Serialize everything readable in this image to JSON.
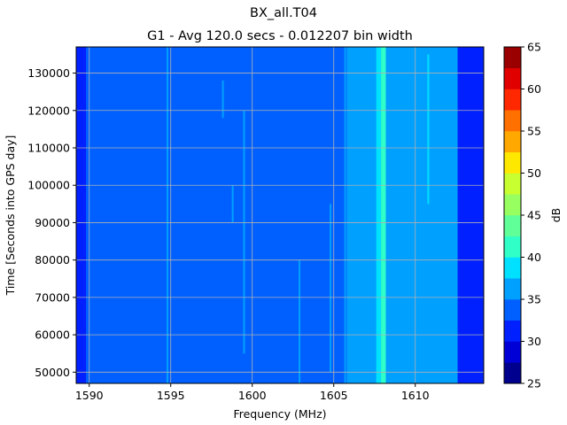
{
  "chart_data": {
    "type": "heatmap",
    "suptitle": "BX_all.T04",
    "title": "G1 - Avg 120.0 secs - 0.012207 bin width",
    "xlabel": "Frequency (MHz)",
    "ylabel": "Time [Seconds into GPS day]",
    "xlim": [
      1589.2,
      1614.2
    ],
    "ylim": [
      47000,
      137000
    ],
    "x_ticks": [
      1590,
      1595,
      1600,
      1605,
      1610
    ],
    "y_ticks": [
      50000,
      60000,
      70000,
      80000,
      90000,
      100000,
      110000,
      120000,
      130000
    ],
    "grid": true,
    "colorbar": {
      "label": "dB",
      "min": 25,
      "max": 65,
      "step": 2.5,
      "ticks": [
        25,
        30,
        35,
        40,
        45,
        50,
        55,
        60,
        65
      ],
      "colors": [
        "#00008f",
        "#0000d6",
        "#0020ff",
        "#0060ff",
        "#00a0ff",
        "#00e0ff",
        "#30ffc8",
        "#60ff98",
        "#98ff60",
        "#c8ff30",
        "#ffe800",
        "#ffa800",
        "#ff7000",
        "#ff2800",
        "#e00000",
        "#9a0000"
      ]
    },
    "background_level_db": 33,
    "spectral_bands": [
      {
        "from": 1589.2,
        "to": 1589.8,
        "level_db": 31
      },
      {
        "from": 1603.0,
        "to": 1604.8,
        "level_db": 34
      },
      {
        "from": 1604.8,
        "to": 1605.8,
        "level_db": 33
      },
      {
        "from": 1605.8,
        "to": 1607.6,
        "level_db": 35
      },
      {
        "from": 1607.6,
        "to": 1607.9,
        "level_db": 38
      },
      {
        "from": 1607.9,
        "to": 1608.2,
        "level_db": 41
      },
      {
        "from": 1608.2,
        "to": 1612.6,
        "level_db": 36
      },
      {
        "from": 1612.6,
        "to": 1614.2,
        "level_db": 31
      }
    ],
    "spurs": [
      {
        "freq": 1594.8,
        "level_db": 36,
        "t_from": 47000,
        "t_to": 137000
      },
      {
        "freq": 1598.2,
        "level_db": 36,
        "t_from": 118000,
        "t_to": 128000
      },
      {
        "freq": 1598.8,
        "level_db": 36,
        "t_from": 90000,
        "t_to": 100000
      },
      {
        "freq": 1599.5,
        "level_db": 35,
        "t_from": 55000,
        "t_to": 120000
      },
      {
        "freq": 1602.9,
        "level_db": 36,
        "t_from": 47000,
        "t_to": 80000
      },
      {
        "freq": 1604.8,
        "level_db": 36,
        "t_from": 50000,
        "t_to": 95000
      },
      {
        "freq": 1605.7,
        "level_db": 36,
        "t_from": 47000,
        "t_to": 137000
      },
      {
        "freq": 1606.3,
        "level_db": 37,
        "t_from": 47000,
        "t_to": 137000
      },
      {
        "freq": 1606.8,
        "level_db": 36,
        "t_from": 47000,
        "t_to": 137000
      },
      {
        "freq": 1607.2,
        "level_db": 37,
        "t_from": 47000,
        "t_to": 137000
      },
      {
        "freq": 1608.05,
        "level_db": 41,
        "t_from": 47000,
        "t_to": 137000
      },
      {
        "freq": 1610.8,
        "level_db": 38,
        "t_from": 95000,
        "t_to": 135000
      }
    ]
  }
}
